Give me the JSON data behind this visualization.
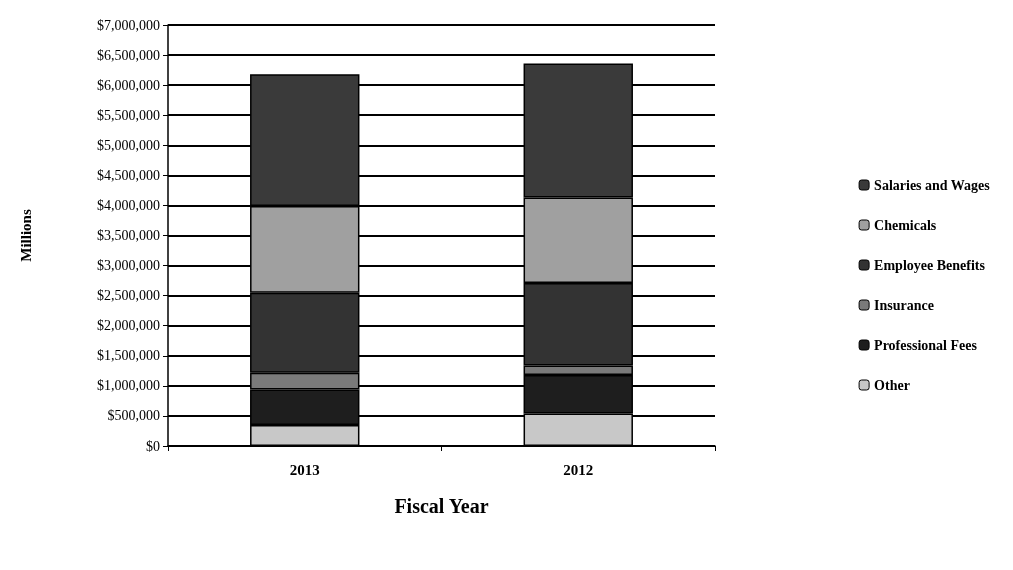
{
  "chart_data": {
    "type": "bar",
    "stacked": true,
    "xlabel": "Fiscal Year",
    "ylabel": "Millions",
    "categories": [
      "2013",
      "2012"
    ],
    "series": [
      {
        "name": "Other",
        "color": "#c8c8c8",
        "values": [
          350000,
          540000
        ]
      },
      {
        "name": "Professional Fees",
        "color": "#1e1e1e",
        "values": [
          590000,
          640000
        ]
      },
      {
        "name": "Insurance",
        "color": "#7a7a7a",
        "values": [
          280000,
          160000
        ]
      },
      {
        "name": "Employee Benefits",
        "color": "#333333",
        "values": [
          1330000,
          1370000
        ]
      },
      {
        "name": "Chemicals",
        "color": "#a0a0a0",
        "values": [
          1440000,
          1420000
        ]
      },
      {
        "name": "Salaries and Wages",
        "color": "#3a3a3a",
        "values": [
          2190000,
          2230000
        ]
      }
    ],
    "ylim": [
      0,
      7000000
    ],
    "yticks": [
      {
        "value": 0,
        "label": "$0"
      },
      {
        "value": 500000,
        "label": "$500,000"
      },
      {
        "value": 1000000,
        "label": "$1,000,000"
      },
      {
        "value": 1500000,
        "label": "$1,500,000"
      },
      {
        "value": 2000000,
        "label": "$2,000,000"
      },
      {
        "value": 2500000,
        "label": "$2,500,000"
      },
      {
        "value": 3000000,
        "label": "$3,000,000"
      },
      {
        "value": 3500000,
        "label": "$3,500,000"
      },
      {
        "value": 4000000,
        "label": "$4,000,000"
      },
      {
        "value": 4500000,
        "label": "$4,500,000"
      },
      {
        "value": 5000000,
        "label": "$5,000,000"
      },
      {
        "value": 5500000,
        "label": "$5,500,000"
      },
      {
        "value": 6000000,
        "label": "$6,000,000"
      },
      {
        "value": 6500000,
        "label": "$6,500,000"
      },
      {
        "value": 7000000,
        "label": "$7,000,000"
      }
    ],
    "grid": "y",
    "legend": "right"
  }
}
